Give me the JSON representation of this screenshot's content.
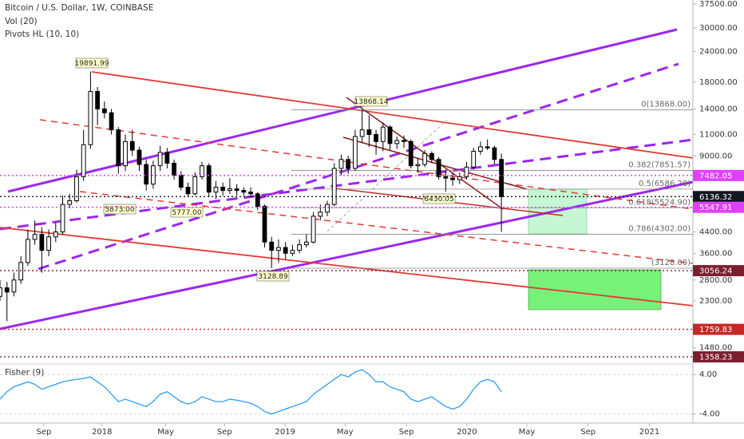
{
  "chart_data": {
    "type": "candlestick",
    "title": "Bitcoin / U.S. Dollar, 1W, COINBASE",
    "indicators": [
      "Vol (20)",
      "Pivots HL (10, 10)"
    ],
    "color": "#000000",
    "log_scale": true,
    "grid": false,
    "xlim": [
      0,
      199
    ],
    "xticks": [
      {
        "value": 12.6,
        "label": "Sep"
      },
      {
        "value": 29.3,
        "label": "2018"
      },
      {
        "value": 47.6,
        "label": "May"
      },
      {
        "value": 64.5,
        "label": "Sep"
      },
      {
        "value": 81.9,
        "label": "2019"
      },
      {
        "value": 99.1,
        "label": "May"
      },
      {
        "value": 116.7,
        "label": "Sep"
      },
      {
        "value": 134.1,
        "label": "2020"
      },
      {
        "value": 151.3,
        "label": "May"
      },
      {
        "value": 168.9,
        "label": "Sep"
      },
      {
        "value": 186.5,
        "label": "2021"
      }
    ],
    "ylim": [
      1280,
      39000
    ],
    "yticks": [
      {
        "value": 37500,
        "label": "37500.00"
      },
      {
        "value": 30000,
        "label": "30000.00"
      },
      {
        "value": 24000,
        "label": "24000.00"
      },
      {
        "value": 18000,
        "label": "18000.00"
      },
      {
        "value": 14000,
        "label": "14000.00"
      },
      {
        "value": 11000,
        "label": "11000.00"
      },
      {
        "value": 9000,
        "label": "9000.00"
      },
      {
        "value": 4400,
        "label": "4400.00"
      },
      {
        "value": 3600,
        "label": "3600.00"
      },
      {
        "value": 2800,
        "label": "2800.00"
      },
      {
        "value": 2300,
        "label": "2300.00"
      },
      {
        "value": 1480,
        "label": "1480.00"
      }
    ],
    "x": [
      0,
      2,
      4,
      6,
      8,
      10,
      12,
      14,
      16,
      18,
      20,
      22,
      24,
      26,
      28,
      30,
      32,
      34,
      36,
      38,
      40,
      42,
      44,
      46,
      48,
      50,
      52,
      54,
      56,
      58,
      60,
      62,
      64,
      66,
      68,
      70,
      72,
      74,
      76,
      78,
      80,
      82,
      84,
      86,
      88,
      90,
      92,
      94,
      96,
      98,
      100,
      102,
      104,
      106,
      108,
      110,
      112,
      114,
      116,
      118,
      120,
      122,
      124,
      126,
      128,
      130,
      132,
      134,
      136,
      138,
      140,
      142,
      144
    ],
    "open": [
      2400,
      2600,
      2500,
      2800,
      3300,
      4100,
      4300,
      3700,
      4200,
      4400,
      5700,
      5900,
      7400,
      10000,
      16500,
      14000,
      13500,
      11500,
      8200,
      10300,
      9500,
      8300,
      6900,
      8200,
      9300,
      8400,
      7500,
      6700,
      6300,
      7400,
      8200,
      6400,
      6700,
      6500,
      6600,
      6500,
      6400,
      6300,
      5600,
      4000,
      3700,
      3800,
      3600,
      3700,
      3900,
      4000,
      5100,
      5300,
      5700,
      8000,
      8700,
      8000,
      10800,
      11500,
      11000,
      10300,
      11800,
      10100,
      10400,
      10300,
      8200,
      8300,
      9200,
      8700,
      7400,
      7300,
      7200,
      7400,
      8100,
      9400,
      9800,
      9700,
      8700
    ],
    "high": [
      2800,
      2750,
      3000,
      3500,
      4500,
      4900,
      4600,
      4500,
      4800,
      6200,
      6300,
      7900,
      11500,
      19891,
      17200,
      15000,
      14000,
      11800,
      11000,
      11500,
      9800,
      8700,
      8600,
      9900,
      9700,
      8700,
      7800,
      7000,
      7700,
      8500,
      8400,
      7100,
      7000,
      7300,
      6900,
      6700,
      6700,
      6400,
      5700,
      4200,
      4100,
      4000,
      3900,
      4100,
      4300,
      5300,
      5700,
      5900,
      8400,
      9100,
      9000,
      11500,
      13868,
      13200,
      11500,
      12300,
      12000,
      10800,
      10900,
      10500,
      8800,
      9500,
      9400,
      8900,
      7900,
      7700,
      7700,
      8500,
      9700,
      10300,
      10500,
      9900,
      9200
    ],
    "low": [
      2300,
      1900,
      2400,
      2700,
      3200,
      3900,
      3000,
      3500,
      4000,
      4300,
      5500,
      5800,
      7100,
      9600,
      12000,
      12800,
      11000,
      7600,
      7800,
      9000,
      7800,
      6500,
      6600,
      7800,
      8000,
      7200,
      6500,
      6100,
      6200,
      7200,
      6100,
      6000,
      6200,
      6300,
      6200,
      6200,
      6100,
      5400,
      3800,
      3128,
      3300,
      3400,
      3500,
      3600,
      3800,
      3950,
      4900,
      5100,
      5600,
      7500,
      7600,
      7800,
      10200,
      9800,
      9100,
      9400,
      9500,
      9600,
      9700,
      8000,
      7700,
      8100,
      8400,
      7200,
      6430,
      6800,
      6900,
      7200,
      7900,
      9100,
      9500,
      8300,
      4400
    ],
    "close": [
      2600,
      2500,
      2800,
      3300,
      4100,
      4300,
      3700,
      4200,
      4400,
      5700,
      5900,
      7400,
      10000,
      16500,
      14000,
      13500,
      11500,
      8200,
      10300,
      9500,
      8300,
      6900,
      8200,
      9300,
      8400,
      7500,
      6700,
      6300,
      7400,
      8200,
      6400,
      6700,
      6500,
      6600,
      6500,
      6400,
      6300,
      5600,
      4000,
      3700,
      3800,
      3600,
      3700,
      3900,
      4000,
      5100,
      5300,
      5700,
      8000,
      8700,
      8000,
      10800,
      11500,
      11000,
      10300,
      11800,
      10100,
      10400,
      10300,
      8200,
      8300,
      9200,
      8700,
      7400,
      7300,
      7200,
      7400,
      8100,
      9400,
      9800,
      9700,
      8700,
      6136
    ],
    "annotations": [
      "19891.99",
      "13868.14",
      "5873.00",
      "5777.00",
      "3128.89",
      "6430.05"
    ],
    "fib_levels": [
      {
        "value": 13868,
        "label": "0(13868.00)"
      },
      {
        "value": 7851.57,
        "label": "0.382(7851.57)"
      },
      {
        "value": 6586.28,
        "label": "0.5(6586.28)"
      },
      {
        "value": 5524.9,
        "label": "0.618(5524.90)"
      },
      {
        "value": 4302,
        "label": "0.786(4302.00)"
      },
      {
        "value": 3128,
        "label": "(3128.00)"
      }
    ],
    "price_lines": {
      "values": [
        7482.05,
        6136.32,
        5547.91,
        3056.24,
        1759.83,
        1358.23
      ],
      "colors": [
        "#e040fb",
        "#131722",
        "#e040fb",
        "#7b1f2e",
        "#c62828",
        "#7b1f2e"
      ]
    },
    "fisher": {
      "title": "Fisher (9)",
      "color": "#2196f3",
      "ylim": [
        -5.5,
        5.8
      ],
      "yticks": [
        {
          "value": 4,
          "label": "4.00"
        },
        {
          "value": -4,
          "label": "-4.00"
        }
      ],
      "values": [
        -1,
        0.5,
        1.5,
        2,
        2.5,
        2,
        1,
        1.5,
        2,
        2.5,
        2.8,
        3,
        3.2,
        3.5,
        2.5,
        1.5,
        0,
        -1.5,
        -1,
        -1.5,
        -2,
        -2.5,
        -1.5,
        0,
        0.5,
        -0.5,
        -1.5,
        -2,
        -1.5,
        -0.5,
        -1,
        -1.5,
        -1.5,
        -1,
        -1.2,
        -1.5,
        -1.8,
        -2.5,
        -3.5,
        -4,
        -3.5,
        -3,
        -2.5,
        -2,
        -1.5,
        0,
        1,
        2,
        3,
        4,
        3.5,
        4.5,
        5,
        4,
        2.5,
        2.5,
        1.5,
        1,
        0.5,
        -1,
        -1.5,
        -1,
        -0.5,
        -1.5,
        -2.5,
        -3,
        -2.5,
        -1,
        1,
        2.5,
        3,
        2.5,
        0.5
      ]
    }
  }
}
